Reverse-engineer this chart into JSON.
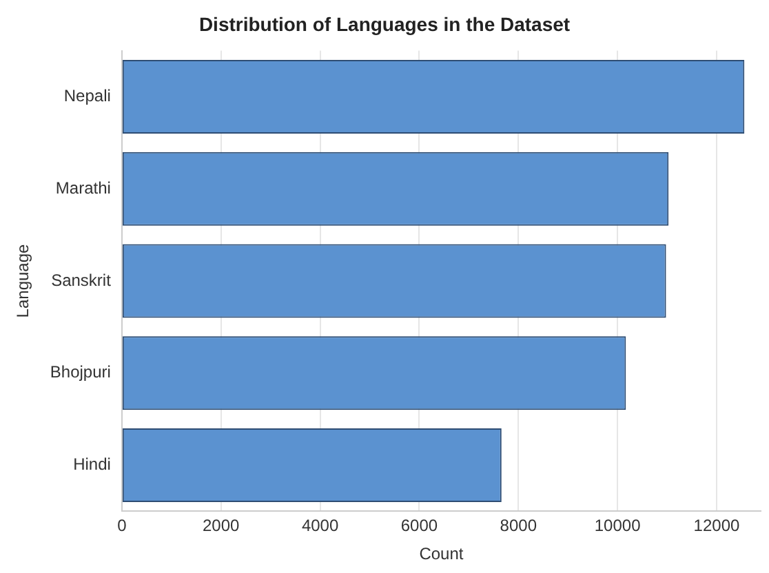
{
  "chart_data": {
    "type": "bar",
    "orientation": "horizontal",
    "title": "Distribution of Languages in the Dataset",
    "xlabel": "Count",
    "ylabel": "Language",
    "categories": [
      "Nepali",
      "Marathi",
      "Sanskrit",
      "Bhojpuri",
      "Hindi"
    ],
    "values": [
      12560,
      11030,
      10980,
      10170,
      7660
    ],
    "color": "#5b92d0",
    "xlim": [
      0,
      12890
    ],
    "xticks": [
      0,
      2000,
      4000,
      6000,
      8000,
      10000,
      12000
    ],
    "grid": "x",
    "legend": false
  }
}
